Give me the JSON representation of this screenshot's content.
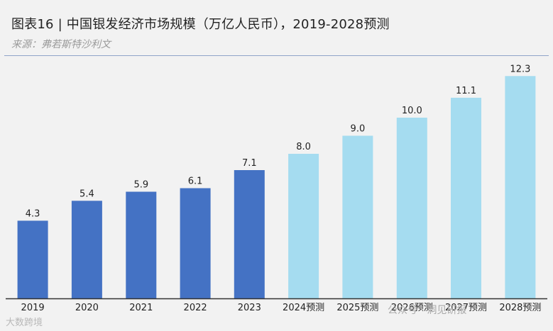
{
  "header": {
    "title": "图表16 | 中国银发经济市场规模（万亿人民币），2019-2028预测",
    "source": "来源：弗若斯特沙利文"
  },
  "colors": {
    "actual": "#4472c4",
    "forecast": "#a5dcf0",
    "axis": "#333333"
  },
  "chart_data": {
    "type": "bar",
    "title": "中国银发经济市场规模（万亿人民币），2019-2028预测",
    "xlabel": "",
    "ylabel": "万亿人民币",
    "ylim": [
      0,
      14
    ],
    "grid": false,
    "categories": [
      "2019",
      "2020",
      "2021",
      "2022",
      "2023",
      "2024预测",
      "2025预测",
      "2026预测",
      "2027预测",
      "2028预测"
    ],
    "values": [
      4.3,
      5.4,
      5.9,
      6.1,
      7.1,
      8.0,
      9.0,
      10.0,
      11.1,
      12.3
    ],
    "value_labels": [
      "4.3",
      "5.4",
      "5.9",
      "6.1",
      "7.1",
      "8.0",
      "9.0",
      "10.0",
      "11.1",
      "12.3"
    ],
    "series_type": [
      "actual",
      "actual",
      "actual",
      "actual",
      "actual",
      "forecast",
      "forecast",
      "forecast",
      "forecast",
      "forecast"
    ]
  },
  "watermarks": {
    "left": "大数跨境",
    "right": "公众号 · 洞见研报"
  }
}
